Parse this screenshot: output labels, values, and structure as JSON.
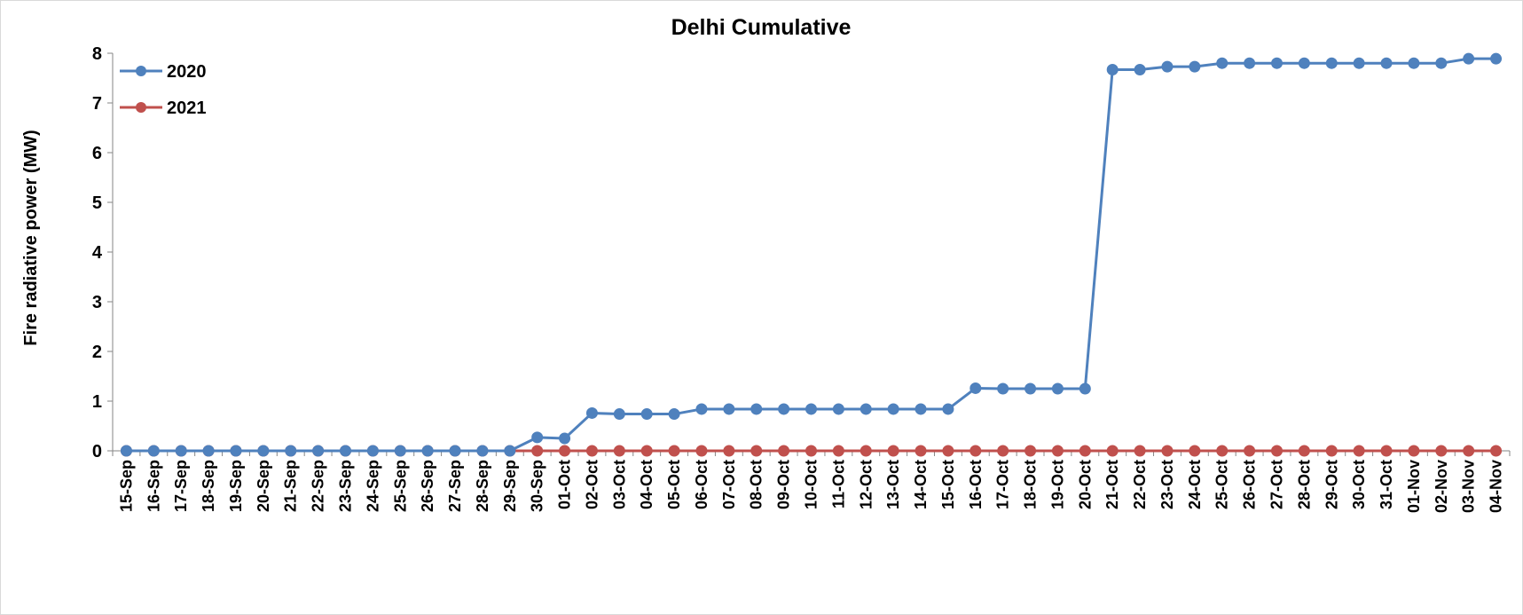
{
  "chart_data": {
    "type": "line",
    "title": "Delhi Cumulative",
    "xlabel": "",
    "ylabel": "Fire radiative power (MW)",
    "ylim": [
      0,
      8
    ],
    "yticks": [
      0,
      1,
      2,
      3,
      4,
      5,
      6,
      7,
      8
    ],
    "grid": false,
    "legend_position": "top-left",
    "categories": [
      "15-Sep",
      "16-Sep",
      "17-Sep",
      "18-Sep",
      "19-Sep",
      "20-Sep",
      "21-Sep",
      "22-Sep",
      "23-Sep",
      "24-Sep",
      "25-Sep",
      "26-Sep",
      "27-Sep",
      "28-Sep",
      "29-Sep",
      "30-Sep",
      "01-Oct",
      "02-Oct",
      "03-Oct",
      "04-Oct",
      "05-Oct",
      "06-Oct",
      "07-Oct",
      "08-Oct",
      "09-Oct",
      "10-Oct",
      "11-Oct",
      "12-Oct",
      "13-Oct",
      "14-Oct",
      "15-Oct",
      "16-Oct",
      "17-Oct",
      "18-Oct",
      "19-Oct",
      "20-Oct",
      "21-Oct",
      "22-Oct",
      "23-Oct",
      "24-Oct",
      "25-Oct",
      "26-Oct",
      "27-Oct",
      "28-Oct",
      "29-Oct",
      "30-Oct",
      "31-Oct",
      "01-Nov",
      "02-Nov",
      "03-Nov",
      "04-Nov"
    ],
    "series": [
      {
        "name": "2020",
        "color": "#4f81bd",
        "values": [
          0,
          0,
          0,
          0,
          0,
          0,
          0,
          0,
          0,
          0,
          0,
          0,
          0,
          0,
          0,
          0.27,
          0.25,
          0.76,
          0.74,
          0.74,
          0.74,
          0.84,
          0.84,
          0.84,
          0.84,
          0.84,
          0.84,
          0.84,
          0.84,
          0.84,
          0.84,
          1.26,
          1.25,
          1.25,
          1.25,
          1.25,
          7.67,
          7.67,
          7.73,
          7.73,
          7.8,
          7.8,
          7.8,
          7.8,
          7.8,
          7.8,
          7.8,
          7.8,
          7.8,
          7.89,
          7.89
        ]
      },
      {
        "name": "2021",
        "color": "#c0504d",
        "values": [
          0,
          0,
          0,
          0,
          0,
          0,
          0,
          0,
          0,
          0,
          0,
          0,
          0,
          0,
          0,
          0,
          0,
          0,
          0,
          0,
          0,
          0,
          0,
          0,
          0,
          0,
          0,
          0,
          0,
          0,
          0,
          0,
          0,
          0,
          0,
          0,
          0,
          0,
          0,
          0,
          0,
          0,
          0,
          0,
          0,
          0,
          0,
          0,
          0,
          0,
          0
        ]
      }
    ]
  }
}
